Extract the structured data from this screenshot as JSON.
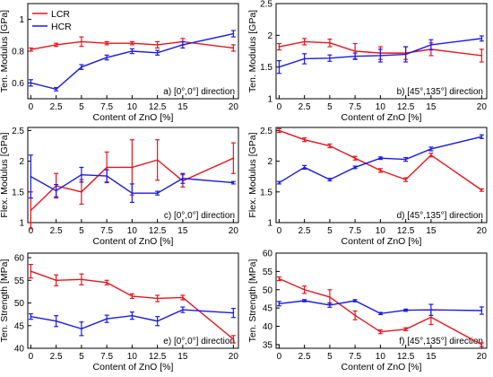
{
  "colors": {
    "LCR": "#e8141c",
    "HCR": "#1a1ae6",
    "axis": "#000000",
    "frame": "#000000"
  },
  "chart_data": [
    {
      "type": "line",
      "x": [
        0,
        2.5,
        5,
        7.5,
        10,
        12.5,
        15,
        20
      ],
      "x_tick_labels": [
        "0",
        "2.5",
        "5",
        "7.5",
        "10",
        "12.5",
        "15",
        "20"
      ],
      "xlabel": "Content of ZnO [%]",
      "ylabel": "Ten. Modulus [GPa]",
      "annotation": "a) [0°,0°] direction",
      "ylim": [
        0.5,
        1.1
      ],
      "yticks": [
        0.6,
        0.8,
        1
      ],
      "y_tick_labels": [
        "0.6",
        "0.8",
        "1"
      ],
      "legend": {
        "position": "top-left",
        "entries": [
          "LCR",
          "HCR"
        ]
      },
      "series": [
        {
          "name": "LCR",
          "values": [
            0.81,
            0.84,
            0.86,
            0.85,
            0.85,
            0.84,
            0.86,
            0.82
          ],
          "errors": [
            0.01,
            0.01,
            0.03,
            0.01,
            0.01,
            0.02,
            0.02,
            0.02
          ]
        },
        {
          "name": "HCR",
          "values": [
            0.6,
            0.56,
            0.7,
            0.76,
            0.8,
            0.79,
            0.84,
            0.91
          ],
          "errors": [
            0.02,
            0.01,
            0.015,
            0.015,
            0.015,
            0.015,
            0.02,
            0.02
          ]
        }
      ]
    },
    {
      "type": "line",
      "x": [
        0,
        2.5,
        5,
        7.5,
        10,
        12.5,
        15,
        20
      ],
      "x_tick_labels": [
        "0",
        "2.5",
        "5",
        "7.5",
        "10",
        "12.5",
        "15",
        "20"
      ],
      "xlabel": "Content of ZnO [%]",
      "ylabel": "Ten. Modulus [GPa]",
      "annotation": "b) [45°,135°] direction",
      "ylim": [
        1.0,
        2.5
      ],
      "yticks": [
        1,
        1.5,
        2,
        2.5
      ],
      "y_tick_labels": [
        "1",
        "1.5",
        "2",
        "2.5"
      ],
      "series": [
        {
          "name": "LCR",
          "values": [
            1.82,
            1.9,
            1.88,
            1.75,
            1.72,
            1.72,
            1.78,
            1.68
          ],
          "errors": [
            0.05,
            0.05,
            0.06,
            0.12,
            0.1,
            0.1,
            0.1,
            0.1
          ]
        },
        {
          "name": "HCR",
          "values": [
            1.5,
            1.63,
            1.64,
            1.67,
            1.68,
            1.7,
            1.85,
            1.95
          ],
          "errors": [
            0.1,
            0.08,
            0.05,
            0.05,
            0.1,
            0.12,
            0.08,
            0.04
          ]
        }
      ]
    },
    {
      "type": "line",
      "x": [
        0,
        2.5,
        5,
        7.5,
        10,
        12.5,
        15,
        20
      ],
      "x_tick_labels": [
        "0",
        "2.5",
        "5",
        "7.5",
        "10",
        "12.5",
        "15",
        "20"
      ],
      "xlabel": "Content of ZnO [%]",
      "ylabel": "Flex. Modulus [GPa]",
      "annotation": "c) [0°,0°] direction",
      "ylim": [
        1.0,
        2.55
      ],
      "yticks": [
        1,
        1.5,
        2,
        2.5
      ],
      "y_tick_labels": [
        "1",
        "1.5",
        "2",
        "2.5"
      ],
      "series": [
        {
          "name": "LCR",
          "values": [
            1.2,
            1.6,
            1.5,
            1.9,
            1.9,
            2.02,
            1.68,
            2.05
          ],
          "errors": [
            0.3,
            0.2,
            0.2,
            0.25,
            0.45,
            0.33,
            0.1,
            0.25
          ]
        },
        {
          "name": "HCR",
          "values": [
            1.75,
            1.52,
            1.78,
            1.76,
            1.48,
            1.48,
            1.72,
            1.65
          ],
          "errors": [
            0.35,
            0.1,
            0.12,
            0.1,
            0.15,
            0.03,
            0.08,
            0.02
          ]
        }
      ]
    },
    {
      "type": "line",
      "x": [
        0,
        2.5,
        5,
        7.5,
        10,
        12.5,
        15,
        20
      ],
      "x_tick_labels": [
        "0",
        "2.5",
        "5",
        "7.5",
        "10",
        "12.5",
        "15",
        "20"
      ],
      "xlabel": "Content of ZnO [%]",
      "ylabel": "Flex. Modulus [GPa]",
      "annotation": "d) [45°,135°] direction",
      "ylim": [
        1.0,
        2.55
      ],
      "yticks": [
        1,
        1.5,
        2,
        2.5
      ],
      "y_tick_labels": [
        "1",
        "1.5",
        "2",
        "2.5"
      ],
      "series": [
        {
          "name": "LCR",
          "values": [
            2.5,
            2.35,
            2.25,
            2.05,
            1.85,
            1.7,
            2.1,
            1.53
          ],
          "errors": [
            0.03,
            0.03,
            0.03,
            0.03,
            0.03,
            0.03,
            0.03,
            0.02
          ]
        },
        {
          "name": "HCR",
          "values": [
            1.65,
            1.9,
            1.7,
            1.9,
            2.05,
            2.03,
            2.2,
            2.4
          ],
          "errors": [
            0.02,
            0.03,
            0.02,
            0.02,
            0.02,
            0.03,
            0.03,
            0.03
          ]
        }
      ]
    },
    {
      "type": "line",
      "x": [
        0,
        2.5,
        5,
        7.5,
        10,
        12.5,
        15,
        20
      ],
      "x_tick_labels": [
        "0",
        "2.5",
        "5",
        "7.5",
        "10",
        "12.5",
        "15",
        "20"
      ],
      "xlabel": "Content of ZnO [%]",
      "ylabel": "Ten. Strength [MPa]",
      "annotation": "e) [0°,0°] direction",
      "ylim": [
        40,
        61
      ],
      "yticks": [
        40,
        45,
        50,
        55,
        60
      ],
      "y_tick_labels": [
        "40",
        "45",
        "50",
        "55",
        "60"
      ],
      "series": [
        {
          "name": "LCR",
          "values": [
            57,
            55,
            55.2,
            54.5,
            51.5,
            51,
            51.2,
            42
          ],
          "errors": [
            1.5,
            1.2,
            1.2,
            0.5,
            0.5,
            0.7,
            0.5,
            0.8
          ]
        },
        {
          "name": "HCR",
          "values": [
            47,
            46,
            44.3,
            46.5,
            47.2,
            46,
            48.5,
            47.8
          ],
          "errors": [
            0.6,
            1.2,
            1.5,
            0.8,
            0.8,
            1.0,
            0.6,
            1.0
          ]
        }
      ]
    },
    {
      "type": "line",
      "x": [
        0,
        2.5,
        5,
        7.5,
        10,
        12.5,
        15,
        20
      ],
      "x_tick_labels": [
        "0",
        "2.5",
        "5",
        "7.5",
        "10",
        "12.5",
        "15",
        "20"
      ],
      "xlabel": "Content of ZnO [%]",
      "ylabel": "Ten. Strength [MPa]",
      "annotation": "f) [45°,135°] direction",
      "ylim": [
        34,
        60
      ],
      "yticks": [
        35,
        40,
        45,
        50,
        55,
        60
      ],
      "y_tick_labels": [
        "35",
        "40",
        "45",
        "50",
        "55",
        "60"
      ],
      "series": [
        {
          "name": "LCR",
          "values": [
            53,
            50,
            48,
            43,
            38.5,
            39.2,
            42.5,
            35
          ],
          "errors": [
            0.5,
            1.0,
            2.0,
            1.2,
            0.5,
            0.4,
            2.0,
            0.5
          ]
        },
        {
          "name": "HCR",
          "values": [
            46.2,
            47,
            45.8,
            47,
            43.5,
            44.4,
            44.5,
            44.3
          ],
          "errors": [
            0.6,
            0.3,
            0.6,
            0.3,
            0.3,
            0.3,
            1.5,
            1.0
          ]
        }
      ]
    }
  ]
}
